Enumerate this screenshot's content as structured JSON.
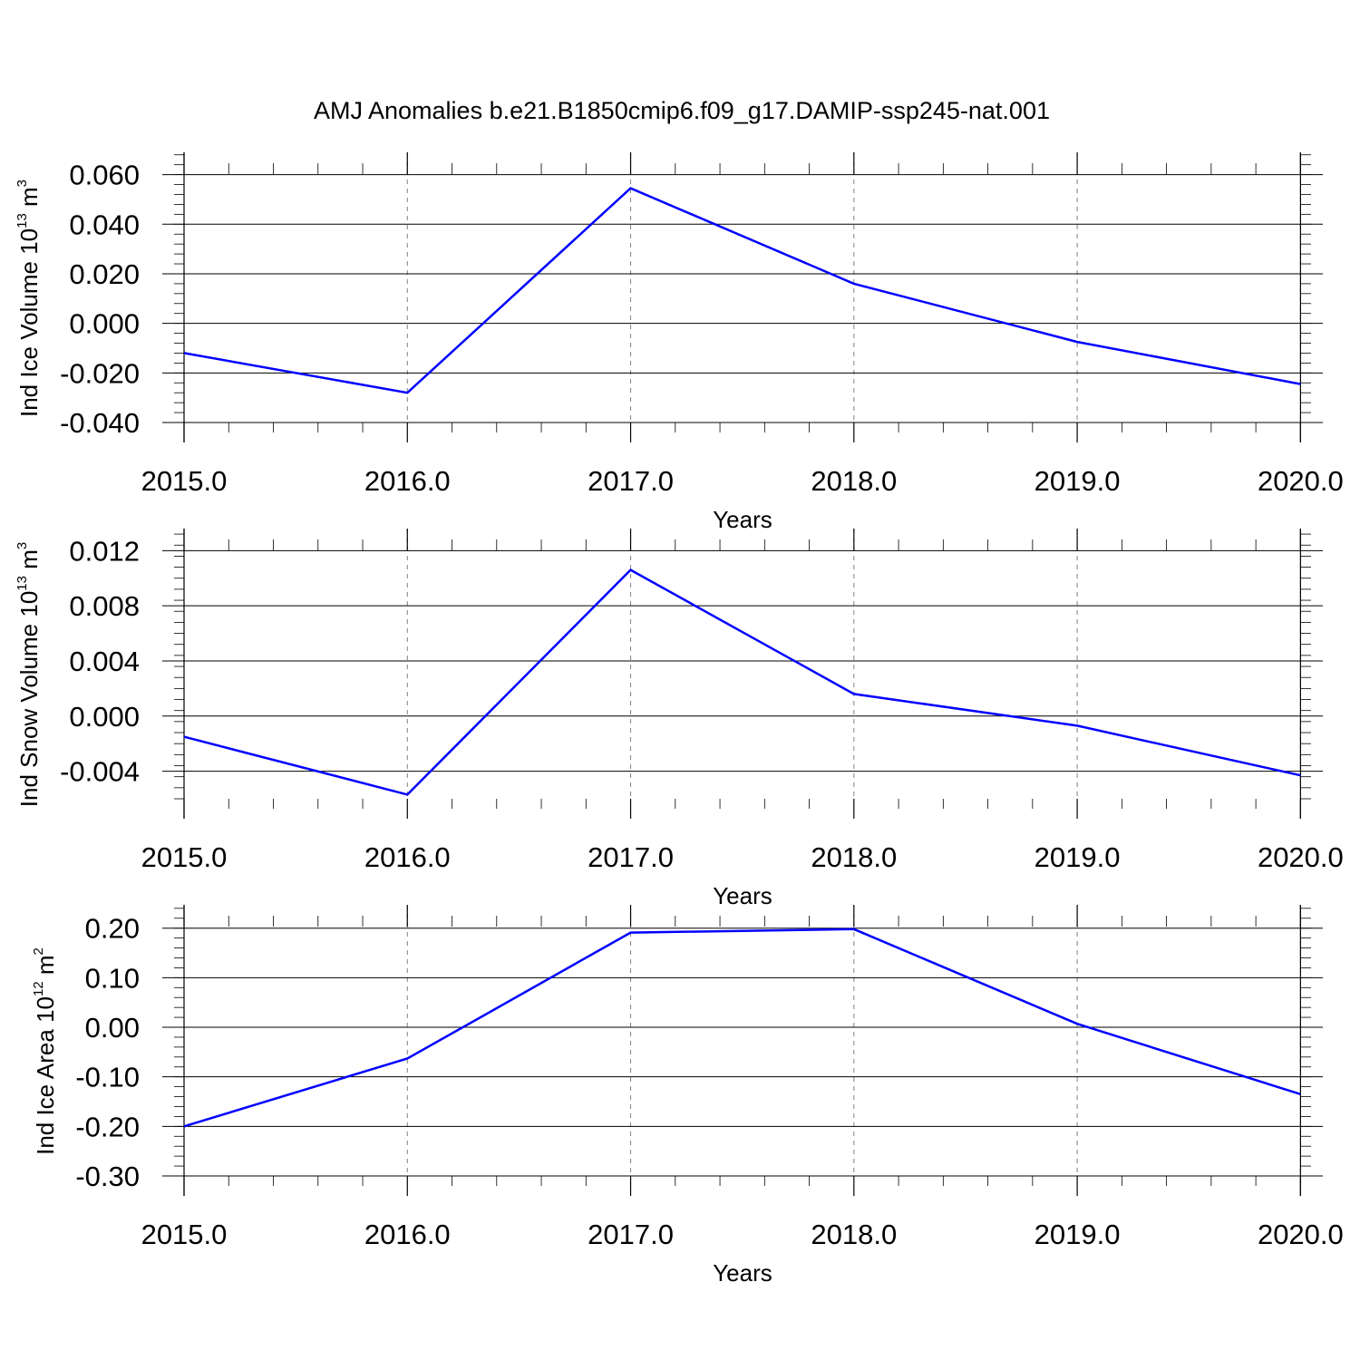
{
  "figure": {
    "title": "AMJ Anomalies b.e21.B1850cmip6.f09_g17.DAMIP-ssp245-nat.001"
  },
  "colors": {
    "line": "#0000ff",
    "axis": "#000000",
    "grid": "#808080",
    "background": "#ffffff"
  },
  "chart_data": [
    {
      "type": "line",
      "x": [
        2015,
        2016,
        2017,
        2018,
        2019,
        2020
      ],
      "series": [
        {
          "values": [
            -0.012,
            -0.028,
            0.0545,
            0.016,
            -0.0075,
            -0.0245
          ]
        }
      ],
      "xlabel": "Years",
      "ylabel": "Ind Ice Volume 10",
      "ylabel_sup": "13",
      "ylabel_unit": " m",
      "ylabel_unit_sup": "3",
      "xlim": [
        2015,
        2020.1
      ],
      "ylim": [
        -0.04,
        0.069
      ],
      "xticks": [
        2015,
        2016,
        2017,
        2018,
        2019,
        2020
      ],
      "xtick_labels": [
        "2015.0",
        "2016.0",
        "2017.0",
        "2018.0",
        "2019.0",
        "2020.0"
      ],
      "yticks": [
        -0.04,
        -0.02,
        0.0,
        0.02,
        0.04,
        0.06
      ],
      "ytick_labels": [
        "-0.040",
        "-0.020",
        "0.000",
        "0.020",
        "0.040",
        "0.060"
      ],
      "grid": "vertical dashed",
      "legend": "none"
    },
    {
      "type": "line",
      "x": [
        2015,
        2016,
        2017,
        2018,
        2019,
        2020
      ],
      "series": [
        {
          "values": [
            -0.0015,
            -0.0057,
            0.0106,
            0.0016,
            -0.0007,
            -0.0043
          ]
        }
      ],
      "xlabel": "Years",
      "ylabel": "Ind Snow Volume 10",
      "ylabel_sup": "13",
      "ylabel_unit": " m",
      "ylabel_unit_sup": "3",
      "xlim": [
        2015,
        2020.1
      ],
      "ylim": [
        -0.006,
        0.0136
      ],
      "xticks": [
        2015,
        2016,
        2017,
        2018,
        2019,
        2020
      ],
      "xtick_labels": [
        "2015.0",
        "2016.0",
        "2017.0",
        "2018.0",
        "2019.0",
        "2020.0"
      ],
      "yticks": [
        -0.004,
        0.0,
        0.004,
        0.008,
        0.012
      ],
      "ytick_labels": [
        "-0.004",
        "0.000",
        "0.004",
        "0.008",
        "0.012"
      ],
      "grid": "vertical dashed",
      "legend": "none"
    },
    {
      "type": "line",
      "x": [
        2015,
        2016,
        2017,
        2018,
        2019,
        2020
      ],
      "series": [
        {
          "values": [
            -0.2,
            -0.063,
            0.191,
            0.198,
            0.007,
            -0.135
          ]
        }
      ],
      "xlabel": "Years",
      "ylabel": "Ind Ice Area 10",
      "ylabel_sup": "12",
      "ylabel_unit": " m",
      "ylabel_unit_sup": "2",
      "xlim": [
        2015,
        2020.1
      ],
      "ylim": [
        -0.3,
        0.247
      ],
      "xticks": [
        2015,
        2016,
        2017,
        2018,
        2019,
        2020
      ],
      "xtick_labels": [
        "2015.0",
        "2016.0",
        "2017.0",
        "2018.0",
        "2019.0",
        "2020.0"
      ],
      "yticks": [
        -0.3,
        -0.2,
        -0.1,
        0.0,
        0.1,
        0.2
      ],
      "ytick_labels": [
        "-0.30",
        "-0.20",
        "-0.10",
        "0.00",
        "0.10",
        "0.20"
      ],
      "grid": "vertical dashed",
      "legend": "none"
    }
  ]
}
